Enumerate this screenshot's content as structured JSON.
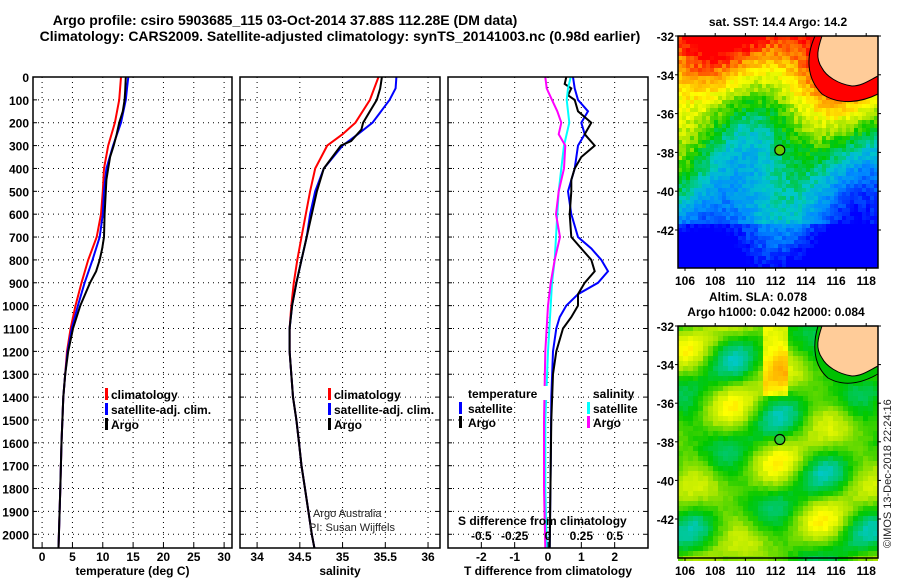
{
  "title": {
    "line1": "Argo profile: csiro 5903685_115 03-Oct-2014 37.88S 112.28E (DM data)",
    "line2": "Climatology: CARS2009. Satellite-adjusted climatology: synTS_20141003.nc (0.98d earlier)"
  },
  "credits": {
    "line1": "Argo Australia",
    "line2": "PI: Susan Wijffels",
    "stamp": "©IMOS 13-Dec-2018 22:24:16"
  },
  "colors": {
    "climatology": "#ff0000",
    "satellite": "#0000ff",
    "argo": "#000000",
    "sal_satellite": "#00ffff",
    "sal_argo": "#ff00ff",
    "land": "#ffcc99"
  },
  "chart_data": [
    {
      "type": "line",
      "xlabel": "temperature (deg C)",
      "ylabel": "depth",
      "xlim": [
        -1.5,
        31.3
      ],
      "ylim": [
        2060,
        0
      ],
      "xticks": [
        "0",
        "5",
        "10",
        "15",
        "20",
        "25",
        "30"
      ],
      "yticks": [
        "0",
        "100",
        "200",
        "300",
        "400",
        "500",
        "600",
        "700",
        "800",
        "900",
        "1000",
        "1100",
        "1200",
        "1300",
        "1400",
        "1500",
        "1600",
        "1700",
        "1800",
        "1900",
        "2000"
      ],
      "grid": true,
      "legend": {
        "placement": "lower-right",
        "entries": [
          "climatology",
          "satellite-adj. clim.",
          "Argo"
        ]
      },
      "series": [
        {
          "name": "climatology",
          "color": "#ff0000",
          "points": [
            [
              0,
              13.0
            ],
            [
              100,
              12.7
            ],
            [
              200,
              12.0
            ],
            [
              300,
              10.9
            ],
            [
              400,
              10.2
            ],
            [
              500,
              10.0
            ],
            [
              600,
              9.7
            ],
            [
              700,
              9.0
            ],
            [
              800,
              7.6
            ],
            [
              900,
              6.5
            ],
            [
              1000,
              5.5
            ],
            [
              1100,
              4.7
            ],
            [
              1200,
              4.1
            ],
            [
              1300,
              3.8
            ],
            [
              1400,
              3.5
            ],
            [
              1600,
              3.2
            ],
            [
              1800,
              3.0
            ],
            [
              2060,
              2.7
            ]
          ]
        },
        {
          "name": "satellite-adj. clim.",
          "color": "#0000ff",
          "points": [
            [
              0,
              14.2
            ],
            [
              50,
              14.0
            ],
            [
              100,
              13.8
            ],
            [
              200,
              13.0
            ],
            [
              300,
              11.7
            ],
            [
              400,
              10.6
            ],
            [
              500,
              10.2
            ],
            [
              600,
              10.0
            ],
            [
              700,
              9.5
            ],
            [
              800,
              8.3
            ],
            [
              900,
              7.0
            ],
            [
              1000,
              5.9
            ],
            [
              1100,
              4.9
            ],
            [
              1200,
              4.2
            ],
            [
              1300,
              3.8
            ],
            [
              1400,
              3.5
            ],
            [
              1600,
              3.2
            ],
            [
              1800,
              3.0
            ],
            [
              2060,
              2.7
            ]
          ]
        },
        {
          "name": "Argo",
          "color": "#000000",
          "points": [
            [
              0,
              13.8
            ],
            [
              60,
              13.7
            ],
            [
              100,
              13.6
            ],
            [
              150,
              13.3
            ],
            [
              200,
              12.7
            ],
            [
              250,
              12.3
            ],
            [
              300,
              11.8
            ],
            [
              350,
              11.2
            ],
            [
              400,
              10.9
            ],
            [
              450,
              10.6
            ],
            [
              500,
              10.5
            ],
            [
              600,
              10.3
            ],
            [
              700,
              10.2
            ],
            [
              750,
              9.9
            ],
            [
              800,
              9.5
            ],
            [
              850,
              8.9
            ],
            [
              900,
              7.9
            ],
            [
              1000,
              6.3
            ],
            [
              1100,
              5.1
            ],
            [
              1200,
              4.3
            ],
            [
              1300,
              3.8
            ],
            [
              1400,
              3.5
            ],
            [
              1600,
              3.2
            ],
            [
              1800,
              3.0
            ],
            [
              2060,
              2.7
            ]
          ]
        }
      ]
    },
    {
      "type": "line",
      "xlabel": "salinity",
      "xlim": [
        33.8,
        36.14
      ],
      "ylim": [
        2060,
        0
      ],
      "xticks": [
        "34",
        "34.5",
        "35",
        "35.5",
        "36"
      ],
      "grid": true,
      "legend": {
        "placement": "lower-right",
        "entries": [
          "climatology",
          "satellite-adj. clim.",
          "Argo"
        ]
      },
      "series": [
        {
          "name": "climatology",
          "color": "#ff0000",
          "points": [
            [
              0,
              35.42
            ],
            [
              100,
              35.32
            ],
            [
              200,
              35.15
            ],
            [
              250,
              35.0
            ],
            [
              300,
              34.82
            ],
            [
              400,
              34.68
            ],
            [
              500,
              34.62
            ],
            [
              600,
              34.57
            ],
            [
              700,
              34.52
            ],
            [
              800,
              34.47
            ],
            [
              900,
              34.43
            ],
            [
              1000,
              34.4
            ],
            [
              1100,
              34.38
            ],
            [
              1200,
              34.38
            ],
            [
              1300,
              34.4
            ],
            [
              1400,
              34.42
            ],
            [
              1500,
              34.46
            ],
            [
              1600,
              34.49
            ],
            [
              1700,
              34.52
            ],
            [
              1800,
              34.56
            ],
            [
              1900,
              34.6
            ],
            [
              2000,
              34.64
            ],
            [
              2060,
              34.67
            ]
          ]
        },
        {
          "name": "satellite-adj. clim.",
          "color": "#0000ff",
          "points": [
            [
              0,
              35.63
            ],
            [
              50,
              35.62
            ],
            [
              100,
              35.55
            ],
            [
              200,
              35.35
            ],
            [
              250,
              35.18
            ],
            [
              300,
              35.0
            ],
            [
              400,
              34.78
            ],
            [
              500,
              34.68
            ],
            [
              600,
              34.62
            ],
            [
              700,
              34.58
            ],
            [
              800,
              34.52
            ],
            [
              900,
              34.46
            ],
            [
              1000,
              34.41
            ],
            [
              1100,
              34.38
            ],
            [
              1200,
              34.38
            ],
            [
              1300,
              34.4
            ],
            [
              1400,
              34.42
            ],
            [
              1500,
              34.46
            ],
            [
              1600,
              34.49
            ],
            [
              1700,
              34.52
            ],
            [
              1800,
              34.56
            ],
            [
              1900,
              34.6
            ],
            [
              2000,
              34.64
            ],
            [
              2060,
              34.67
            ]
          ]
        },
        {
          "name": "Argo",
          "color": "#000000",
          "points": [
            [
              0,
              35.46
            ],
            [
              50,
              35.44
            ],
            [
              100,
              35.4
            ],
            [
              150,
              35.32
            ],
            [
              200,
              35.24
            ],
            [
              230,
              35.22
            ],
            [
              280,
              35.1
            ],
            [
              300,
              34.98
            ],
            [
              400,
              34.78
            ],
            [
              500,
              34.7
            ],
            [
              600,
              34.64
            ],
            [
              700,
              34.58
            ],
            [
              800,
              34.52
            ],
            [
              900,
              34.46
            ],
            [
              1000,
              34.41
            ],
            [
              1100,
              34.38
            ],
            [
              1200,
              34.38
            ],
            [
              1300,
              34.4
            ],
            [
              1400,
              34.42
            ],
            [
              1500,
              34.46
            ],
            [
              1600,
              34.49
            ],
            [
              1700,
              34.52
            ],
            [
              1800,
              34.56
            ],
            [
              1900,
              34.6
            ],
            [
              2000,
              34.64
            ],
            [
              2060,
              34.67
            ]
          ]
        }
      ]
    },
    {
      "type": "line",
      "xlabel": "T difference from climatology",
      "x2label": "S difference from climatology",
      "xlim": [
        -3,
        3
      ],
      "x2lim": [
        -0.75,
        0.75
      ],
      "ylim": [
        2060,
        0
      ],
      "xticks": [
        "-2",
        "-1",
        "0",
        "1",
        "2"
      ],
      "x2ticks": [
        "-0.5",
        "-0.25",
        "0",
        "0.25",
        "0.5"
      ],
      "grid": true,
      "legend": {
        "placement": "lower-center",
        "temperature_title": "temperature",
        "salinity_title": "salinity",
        "entries_t": [
          "satellite",
          "Argo"
        ],
        "entries_s": [
          "satellite",
          "Argo"
        ]
      },
      "series": [
        {
          "name": "T satellite",
          "axis": "T",
          "color": "#0000ff",
          "points": [
            [
              0,
              0.75
            ],
            [
              50,
              0.8
            ],
            [
              100,
              0.9
            ],
            [
              150,
              1.2
            ],
            [
              200,
              1.0
            ],
            [
              250,
              1.1
            ],
            [
              300,
              0.9
            ],
            [
              400,
              0.8
            ],
            [
              500,
              0.6
            ],
            [
              600,
              0.7
            ],
            [
              700,
              0.9
            ],
            [
              750,
              1.3
            ],
            [
              800,
              1.6
            ],
            [
              850,
              1.8
            ],
            [
              900,
              1.5
            ],
            [
              950,
              0.9
            ],
            [
              1000,
              0.55
            ],
            [
              1050,
              0.35
            ],
            [
              1100,
              0.25
            ],
            [
              1200,
              0.15
            ],
            [
              1400,
              0.1
            ],
            [
              1700,
              0.08
            ],
            [
              2060,
              0.05
            ]
          ]
        },
        {
          "name": "T Argo",
          "axis": "T",
          "color": "#000000",
          "points": [
            [
              0,
              0.55
            ],
            [
              30,
              0.5
            ],
            [
              50,
              0.7
            ],
            [
              80,
              0.6
            ],
            [
              100,
              0.8
            ],
            [
              150,
              0.9
            ],
            [
              200,
              1.3
            ],
            [
              250,
              1.1
            ],
            [
              300,
              1.4
            ],
            [
              350,
              1.0
            ],
            [
              400,
              0.8
            ],
            [
              450,
              0.7
            ],
            [
              500,
              0.7
            ],
            [
              600,
              0.65
            ],
            [
              700,
              0.7
            ],
            [
              750,
              1.0
            ],
            [
              800,
              1.3
            ],
            [
              850,
              1.4
            ],
            [
              900,
              1.1
            ],
            [
              950,
              0.9
            ],
            [
              1000,
              0.9
            ],
            [
              1050,
              0.7
            ],
            [
              1100,
              0.45
            ],
            [
              1200,
              0.25
            ],
            [
              1300,
              0.15
            ],
            [
              1500,
              0.1
            ],
            [
              2060,
              0.05
            ]
          ]
        },
        {
          "name": "S satellite",
          "axis": "S",
          "color": "#00ffff",
          "points": [
            [
              0,
              0.17
            ],
            [
              50,
              0.15
            ],
            [
              100,
              0.14
            ],
            [
              200,
              0.16
            ],
            [
              300,
              0.12
            ],
            [
              400,
              0.1
            ],
            [
              500,
              0.08
            ],
            [
              600,
              0.07
            ],
            [
              700,
              0.06
            ],
            [
              800,
              0.05
            ],
            [
              900,
              0.03
            ],
            [
              1000,
              0.02
            ],
            [
              1200,
              0.0
            ],
            [
              1500,
              -0.02
            ],
            [
              1800,
              -0.02
            ],
            [
              2060,
              -0.01
            ]
          ]
        },
        {
          "name": "S Argo",
          "axis": "S",
          "color": "#ff00ff",
          "points": [
            [
              0,
              -0.02
            ],
            [
              50,
              -0.01
            ],
            [
              100,
              0.03
            ],
            [
              150,
              0.07
            ],
            [
              200,
              0.1
            ],
            [
              250,
              0.08
            ],
            [
              300,
              0.13
            ],
            [
              400,
              0.12
            ],
            [
              500,
              0.08
            ],
            [
              600,
              0.06
            ],
            [
              700,
              0.09
            ],
            [
              800,
              0.05
            ],
            [
              900,
              0.02
            ],
            [
              1000,
              0.0
            ],
            [
              1200,
              -0.02
            ],
            [
              1500,
              -0.03
            ],
            [
              1800,
              -0.03
            ],
            [
              2060,
              -0.02
            ]
          ]
        }
      ]
    },
    {
      "type": "heatmap",
      "title": "sat. SST: 14.4 Argo: 14.2",
      "xticks": [
        "106",
        "108",
        "110",
        "112",
        "114",
        "116",
        "118"
      ],
      "yticks": [
        "-32",
        "-34",
        "-36",
        "-38",
        "-40",
        "-42"
      ],
      "marker": {
        "lon": 112.28,
        "lat": -37.88
      }
    },
    {
      "type": "heatmap",
      "title_line1": "Altim. SLA: 0.078",
      "title_line2": "Argo h1000: 0.042 h2000: 0.084",
      "xticks": [
        "106",
        "108",
        "110",
        "112",
        "114",
        "116",
        "118"
      ],
      "yticks": [
        "-32",
        "-34",
        "-36",
        "-38",
        "-40",
        "-42"
      ],
      "marker": {
        "lon": 112.28,
        "lat": -37.88
      }
    }
  ]
}
